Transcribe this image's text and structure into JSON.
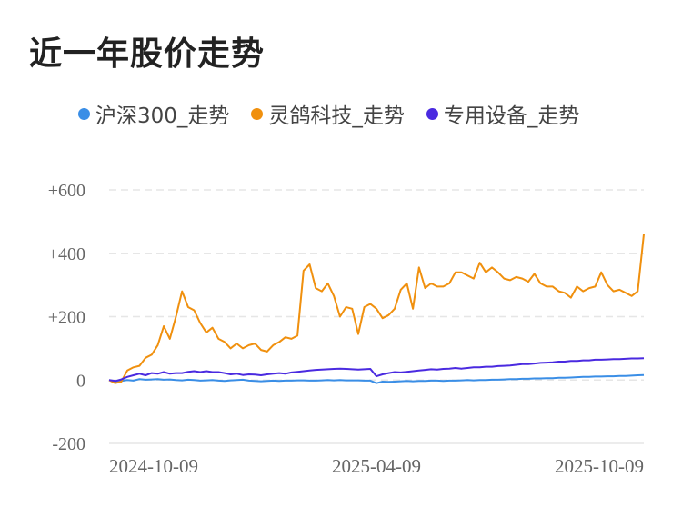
{
  "page_title": "近一年股价走势",
  "chart_data": {
    "type": "line",
    "title": "近一年股价走势",
    "legend_position": "top",
    "grid": true,
    "ylim": [
      -200,
      600
    ],
    "y_ticks": [
      {
        "value": 600,
        "label": "+600"
      },
      {
        "value": 400,
        "label": "+400"
      },
      {
        "value": 200,
        "label": "+200"
      },
      {
        "value": 0,
        "label": "0"
      },
      {
        "value": -200,
        "label": "-200"
      }
    ],
    "x_ticks": [
      "2024-10-09",
      "2025-04-09",
      "2025-10-09"
    ],
    "x_tick_index": [
      1,
      44,
      88
    ],
    "x": [
      "2024-10-08",
      "2024-10-09",
      "2024-10-12",
      "2024-10-15",
      "2024-10-18",
      "2024-10-22",
      "2024-10-26",
      "2024-10-30",
      "2024-11-03",
      "2024-11-07",
      "2024-11-11",
      "2024-11-14",
      "2024-11-17",
      "2024-11-20",
      "2024-11-24",
      "2024-11-28",
      "2024-12-01",
      "2024-12-05",
      "2024-12-09",
      "2024-12-13",
      "2024-12-17",
      "2024-12-21",
      "2024-12-25",
      "2024-12-29",
      "2025-01-02",
      "2025-01-06",
      "2025-01-10",
      "2025-01-14",
      "2025-01-18",
      "2025-01-22",
      "2025-01-26",
      "2025-01-30",
      "2025-02-03",
      "2025-02-07",
      "2025-02-11",
      "2025-02-15",
      "2025-02-19",
      "2025-02-23",
      "2025-02-27",
      "2025-03-03",
      "2025-03-07",
      "2025-03-11",
      "2025-03-15",
      "2025-03-19",
      "2025-04-09",
      "2025-04-12",
      "2025-04-15",
      "2025-04-19",
      "2025-04-23",
      "2025-04-27",
      "2025-05-01",
      "2025-05-05",
      "2025-05-09",
      "2025-05-13",
      "2025-05-17",
      "2025-05-21",
      "2025-05-25",
      "2025-05-29",
      "2025-06-02",
      "2025-06-06",
      "2025-06-10",
      "2025-06-14",
      "2025-06-18",
      "2025-06-22",
      "2025-06-26",
      "2025-06-30",
      "2025-07-04",
      "2025-07-08",
      "2025-07-12",
      "2025-07-16",
      "2025-07-20",
      "2025-07-24",
      "2025-07-28",
      "2025-08-01",
      "2025-08-05",
      "2025-08-09",
      "2025-08-13",
      "2025-08-17",
      "2025-08-21",
      "2025-08-25",
      "2025-08-29",
      "2025-09-02",
      "2025-09-06",
      "2025-09-10",
      "2025-09-14",
      "2025-09-18",
      "2025-09-22",
      "2025-09-27",
      "2025-10-09"
    ],
    "series": [
      {
        "name": "沪深300_走势",
        "color": "#3a8ee6",
        "values": [
          0,
          -5,
          -3,
          0,
          -2,
          3,
          1,
          2,
          3,
          1,
          2,
          0,
          -1,
          1,
          0,
          -2,
          -1,
          0,
          -2,
          -3,
          -1,
          0,
          1,
          -2,
          -3,
          -4,
          -3,
          -2,
          -3,
          -2,
          -2,
          -1,
          -1,
          -2,
          -2,
          -1,
          0,
          -1,
          0,
          -1,
          -1,
          -1,
          -2,
          -2,
          -10,
          -5,
          -6,
          -5,
          -4,
          -3,
          -4,
          -3,
          -3,
          -2,
          -2,
          -3,
          -2,
          -2,
          -1,
          0,
          -1,
          0,
          0,
          1,
          1,
          2,
          3,
          3,
          4,
          4,
          5,
          5,
          6,
          6,
          7,
          7,
          8,
          9,
          10,
          10,
          11,
          11,
          12,
          12,
          13,
          13,
          14,
          15,
          16
        ]
      },
      {
        "name": "灵鸽科技_走势",
        "color": "#f0900e",
        "values": [
          0,
          -10,
          -5,
          30,
          40,
          45,
          70,
          80,
          110,
          170,
          130,
          200,
          280,
          230,
          220,
          180,
          150,
          165,
          130,
          120,
          100,
          115,
          100,
          110,
          115,
          95,
          90,
          110,
          120,
          135,
          130,
          140,
          345,
          365,
          290,
          280,
          305,
          265,
          200,
          230,
          225,
          145,
          230,
          240,
          225,
          195,
          205,
          225,
          285,
          305,
          225,
          355,
          290,
          305,
          295,
          295,
          305,
          340,
          340,
          330,
          320,
          370,
          340,
          355,
          340,
          320,
          315,
          325,
          320,
          310,
          335,
          305,
          295,
          295,
          280,
          275,
          260,
          295,
          280,
          290,
          295,
          340,
          300,
          280,
          285,
          275,
          265,
          280,
          460
        ]
      },
      {
        "name": "专用设备_走势",
        "color": "#4a2ae0",
        "values": [
          0,
          -3,
          2,
          10,
          15,
          20,
          15,
          22,
          20,
          25,
          20,
          22,
          22,
          26,
          28,
          25,
          28,
          25,
          25,
          22,
          18,
          20,
          16,
          18,
          17,
          15,
          18,
          20,
          22,
          20,
          24,
          26,
          28,
          30,
          32,
          33,
          34,
          35,
          36,
          35,
          34,
          33,
          34,
          35,
          12,
          18,
          22,
          25,
          24,
          26,
          28,
          30,
          32,
          34,
          33,
          35,
          36,
          38,
          36,
          38,
          40,
          40,
          42,
          42,
          44,
          45,
          46,
          48,
          50,
          50,
          52,
          54,
          55,
          56,
          58,
          58,
          60,
          60,
          62,
          62,
          64,
          64,
          65,
          66,
          66,
          67,
          68,
          68,
          69
        ]
      }
    ]
  }
}
